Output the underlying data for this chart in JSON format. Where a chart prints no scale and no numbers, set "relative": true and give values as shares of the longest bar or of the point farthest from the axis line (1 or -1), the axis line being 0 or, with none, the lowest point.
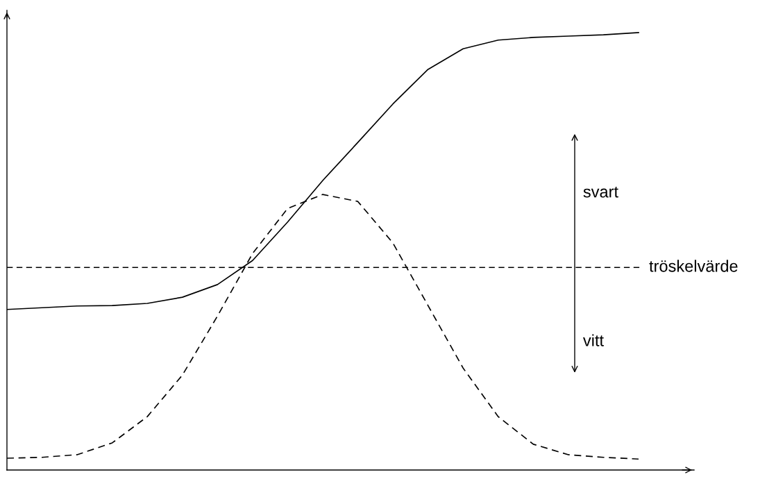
{
  "chart_data": {
    "type": "line",
    "relative": true,
    "grid": false,
    "legend": false,
    "categories": [
      null,
      null,
      null,
      null,
      null,
      null,
      null,
      null,
      null,
      null,
      null,
      null,
      null,
      null,
      null,
      null,
      null,
      null,
      null
    ],
    "series": [
      {
        "color": "#000000",
        "line_style": "solid",
        "values": [
          0.367,
          0.371,
          0.375,
          0.376,
          0.381,
          0.395,
          0.424,
          0.479,
          0.567,
          0.662,
          0.749,
          0.837,
          0.916,
          0.963,
          0.983,
          0.989,
          0.992,
          0.995,
          1
        ]
      },
      {
        "color": "#000000",
        "line_style": "dashed",
        "values": [
          0.027,
          0.029,
          0.035,
          0.062,
          0.122,
          0.217,
          0.352,
          0.495,
          0.598,
          0.63,
          0.614,
          0.519,
          0.376,
          0.233,
          0.122,
          0.059,
          0.035,
          0.029,
          0.025
        ]
      }
    ],
    "ref_lines": [
      {
        "axis": "y",
        "value": 0.463,
        "label": "tröskelvärde",
        "color": "#000000",
        "line_style": "dashed"
      }
    ],
    "annotations": [
      "svart",
      "vitt"
    ]
  }
}
